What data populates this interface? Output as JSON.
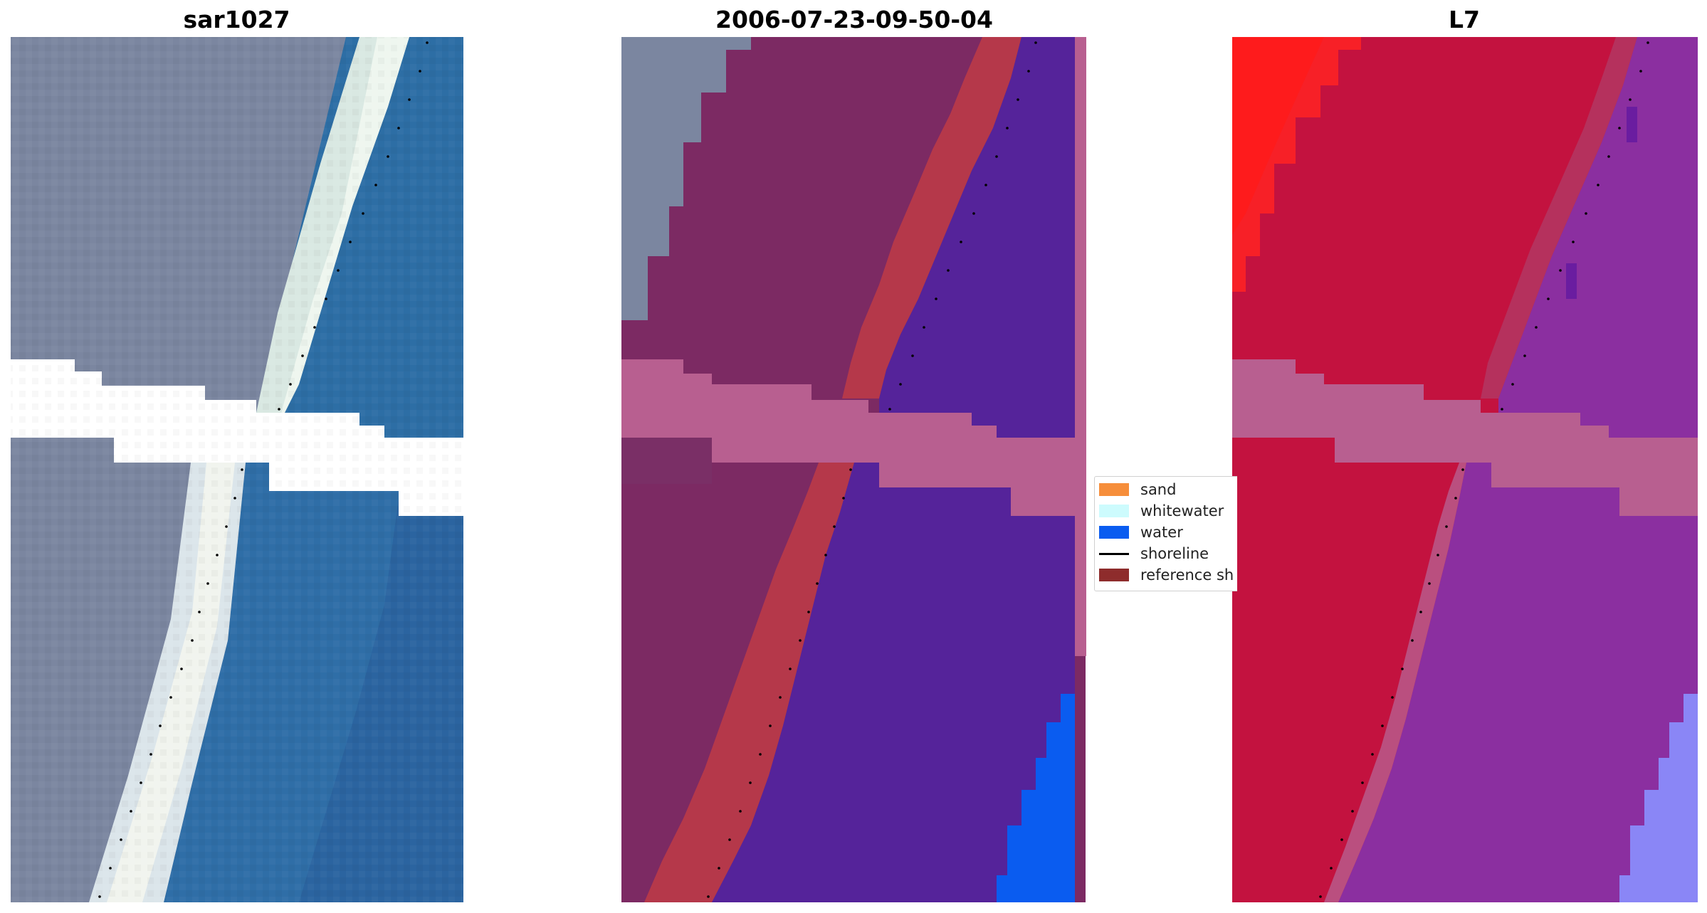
{
  "panels": [
    {
      "title": "sar1027",
      "description_icon": "rgb-satellite-image"
    },
    {
      "title": "2006-07-23-09-50-04",
      "description_icon": "classified-image"
    },
    {
      "title": "L7",
      "description_icon": "mndwi-image"
    }
  ],
  "legend": {
    "items": [
      {
        "label": "sand",
        "color": "#f68e3b",
        "kind": "patch"
      },
      {
        "label": "whitewater",
        "color": "#cdfbfd",
        "kind": "patch"
      },
      {
        "label": "water",
        "color": "#0a5cf0",
        "kind": "patch"
      },
      {
        "label": "shoreline",
        "color": "#000000",
        "kind": "line"
      },
      {
        "label": "reference sh",
        "color": "#8e2c2c",
        "kind": "patch"
      }
    ]
  },
  "colors": {
    "land_rgb": "#7f8aa4",
    "surf_rgb": "#e6efe6",
    "ocean_rgb": "#2e6ea3",
    "land_class": "#7c2a63",
    "reference_band": "#b5384a",
    "water_class": "#55239a",
    "water_bright": "#0a5cf0",
    "nodata": "#b85f90",
    "land_index": "#c3123f",
    "land_index_bright": "#f72027",
    "water_index": "#8b2fa0",
    "water_index_bright": "#8a86f6"
  }
}
